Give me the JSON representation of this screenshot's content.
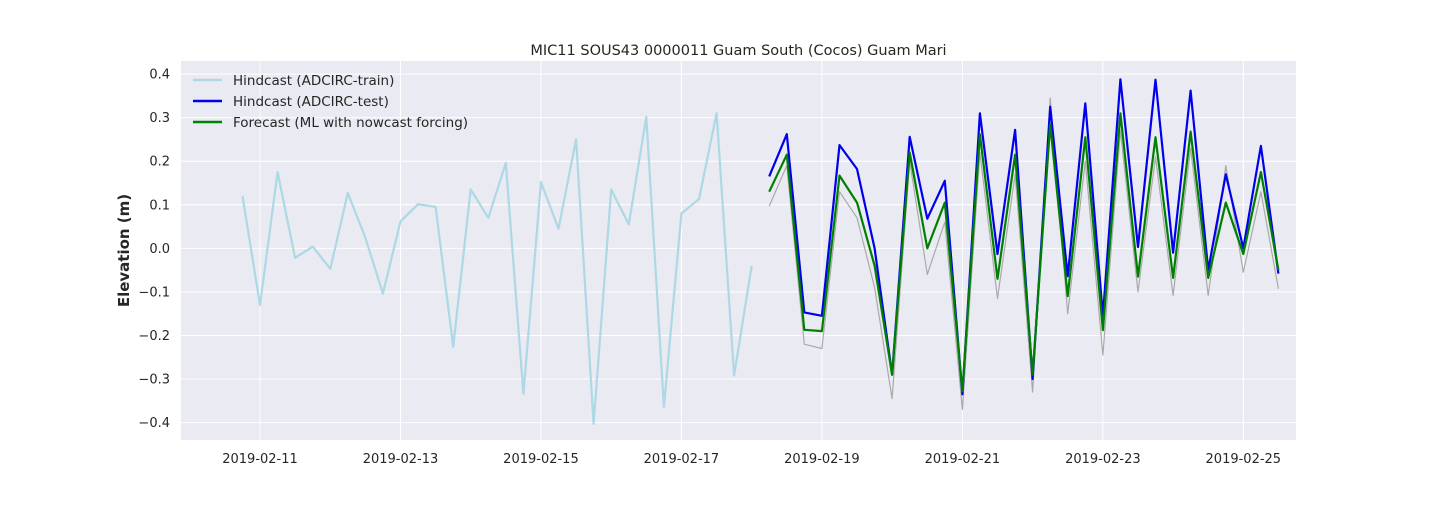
{
  "chart_data": {
    "type": "line",
    "title": "MIC11 SOUS43 0000011 Guam South (Cocos) Guam Mari",
    "xlabel": "",
    "ylabel": "Elevation (m)",
    "xlim": [
      "2019-02-09T21:00",
      "2019-02-25T18:00"
    ],
    "ylim": [
      -0.44,
      0.43
    ],
    "xticks": [
      "2019-02-11",
      "2019-02-13",
      "2019-02-15",
      "2019-02-17",
      "2019-02-19",
      "2019-02-21",
      "2019-02-23",
      "2019-02-25"
    ],
    "yticks": [
      "0.4",
      "0.3",
      "0.2",
      "0.1",
      "0.0",
      "−0.1",
      "−0.2",
      "−0.3",
      "−0.4"
    ],
    "grid": true,
    "legend_position": "top-left",
    "series": [
      {
        "name": "Hindcast (ADCIRC-train)",
        "color": "#add8e6",
        "points": [
          [
            "2019-02-10T18:00",
            0.12
          ],
          [
            "2019-02-11T00:00",
            -0.13
          ],
          [
            "2019-02-11T06:00",
            0.175
          ],
          [
            "2019-02-11T12:00",
            -0.022
          ],
          [
            "2019-02-11T18:00",
            0.004
          ],
          [
            "2019-02-12T00:00",
            -0.047
          ],
          [
            "2019-02-12T06:00",
            0.127
          ],
          [
            "2019-02-12T12:00",
            0.024
          ],
          [
            "2019-02-12T18:00",
            -0.104
          ],
          [
            "2019-02-13T00:00",
            0.062
          ],
          [
            "2019-02-13T06:00",
            0.101
          ],
          [
            "2019-02-13T12:00",
            0.095
          ],
          [
            "2019-02-13T18:00",
            -0.226
          ],
          [
            "2019-02-14T00:00",
            0.135
          ],
          [
            "2019-02-14T06:00",
            0.07
          ],
          [
            "2019-02-14T12:00",
            0.196
          ],
          [
            "2019-02-14T18:00",
            -0.334
          ],
          [
            "2019-02-15T00:00",
            0.152
          ],
          [
            "2019-02-15T06:00",
            0.045
          ],
          [
            "2019-02-15T12:00",
            0.25
          ],
          [
            "2019-02-15T18:00",
            -0.403
          ],
          [
            "2019-02-16T00:00",
            0.135
          ],
          [
            "2019-02-16T06:00",
            0.055
          ],
          [
            "2019-02-16T12:00",
            0.302
          ],
          [
            "2019-02-16T18:00",
            -0.364
          ],
          [
            "2019-02-17T00:00",
            0.08
          ],
          [
            "2019-02-17T06:00",
            0.113
          ],
          [
            "2019-02-17T12:00",
            0.31
          ],
          [
            "2019-02-17T18:00",
            -0.292
          ],
          [
            "2019-02-18T00:00",
            -0.04
          ]
        ]
      },
      {
        "name": "Hindcast (ADCIRC-test)",
        "color": "#0000ee",
        "points": [
          [
            "2019-02-18T06:00",
            0.165
          ],
          [
            "2019-02-18T12:00",
            0.262
          ],
          [
            "2019-02-18T18:00",
            -0.147
          ],
          [
            "2019-02-19T00:00",
            -0.155
          ],
          [
            "2019-02-19T06:00",
            0.237
          ],
          [
            "2019-02-19T12:00",
            0.182
          ],
          [
            "2019-02-19T18:00",
            0.0
          ],
          [
            "2019-02-20T00:00",
            -0.29
          ],
          [
            "2019-02-20T06:00",
            0.256
          ],
          [
            "2019-02-20T12:00",
            0.068
          ],
          [
            "2019-02-20T18:00",
            0.155
          ],
          [
            "2019-02-21T00:00",
            -0.335
          ],
          [
            "2019-02-21T06:00",
            0.31
          ],
          [
            "2019-02-21T12:00",
            -0.013
          ],
          [
            "2019-02-21T18:00",
            0.272
          ],
          [
            "2019-02-22T00:00",
            -0.3
          ],
          [
            "2019-02-22T06:00",
            0.325
          ],
          [
            "2019-02-22T12:00",
            -0.064
          ],
          [
            "2019-02-22T18:00",
            0.333
          ],
          [
            "2019-02-23T00:00",
            -0.155
          ],
          [
            "2019-02-23T06:00",
            0.388
          ],
          [
            "2019-02-23T12:00",
            0.003
          ],
          [
            "2019-02-23T18:00",
            0.387
          ],
          [
            "2019-02-24T00:00",
            -0.01
          ],
          [
            "2019-02-24T06:00",
            0.362
          ],
          [
            "2019-02-24T12:00",
            -0.05
          ],
          [
            "2019-02-24T18:00",
            0.17
          ],
          [
            "2019-02-25T00:00",
            0.0
          ],
          [
            "2019-02-25T06:00",
            0.235
          ],
          [
            "2019-02-25T12:00",
            -0.058
          ]
        ]
      },
      {
        "name": "Forecast (ML with nowcast forcing)",
        "color": "#008000",
        "points": [
          [
            "2019-02-18T06:00",
            0.13
          ],
          [
            "2019-02-18T12:00",
            0.215
          ],
          [
            "2019-02-18T18:00",
            -0.187
          ],
          [
            "2019-02-19T00:00",
            -0.19
          ],
          [
            "2019-02-19T06:00",
            0.167
          ],
          [
            "2019-02-19T12:00",
            0.105
          ],
          [
            "2019-02-19T18:00",
            -0.04
          ],
          [
            "2019-02-20T00:00",
            -0.29
          ],
          [
            "2019-02-20T06:00",
            0.22
          ],
          [
            "2019-02-20T12:00",
            0.0
          ],
          [
            "2019-02-20T18:00",
            0.105
          ],
          [
            "2019-02-21T00:00",
            -0.328
          ],
          [
            "2019-02-21T06:00",
            0.262
          ],
          [
            "2019-02-21T12:00",
            -0.07
          ],
          [
            "2019-02-21T18:00",
            0.215
          ],
          [
            "2019-02-22T00:00",
            -0.29
          ],
          [
            "2019-02-22T06:00",
            0.285
          ],
          [
            "2019-02-22T12:00",
            -0.11
          ],
          [
            "2019-02-22T18:00",
            0.255
          ],
          [
            "2019-02-23T00:00",
            -0.188
          ],
          [
            "2019-02-23T06:00",
            0.31
          ],
          [
            "2019-02-23T12:00",
            -0.065
          ],
          [
            "2019-02-23T18:00",
            0.255
          ],
          [
            "2019-02-24T00:00",
            -0.068
          ],
          [
            "2019-02-24T06:00",
            0.268
          ],
          [
            "2019-02-24T12:00",
            -0.068
          ],
          [
            "2019-02-24T18:00",
            0.105
          ],
          [
            "2019-02-25T00:00",
            -0.013
          ],
          [
            "2019-02-25T06:00",
            0.175
          ],
          [
            "2019-02-25T12:00",
            -0.05
          ]
        ]
      },
      {
        "color": "#aaaaaa",
        "points": [
          [
            "2019-02-18T06:00",
            0.097
          ],
          [
            "2019-02-18T12:00",
            0.19
          ],
          [
            "2019-02-18T18:00",
            -0.22
          ],
          [
            "2019-02-19T00:00",
            -0.23
          ],
          [
            "2019-02-19T06:00",
            0.13
          ],
          [
            "2019-02-19T12:00",
            0.07
          ],
          [
            "2019-02-19T18:00",
            -0.09
          ],
          [
            "2019-02-20T00:00",
            -0.345
          ],
          [
            "2019-02-20T06:00",
            0.2
          ],
          [
            "2019-02-20T12:00",
            -0.06
          ],
          [
            "2019-02-20T18:00",
            0.06
          ],
          [
            "2019-02-21T00:00",
            -0.37
          ],
          [
            "2019-02-21T06:00",
            0.22
          ],
          [
            "2019-02-21T12:00",
            -0.115
          ],
          [
            "2019-02-21T18:00",
            0.17
          ],
          [
            "2019-02-22T00:00",
            -0.33
          ],
          [
            "2019-02-22T06:00",
            0.345
          ],
          [
            "2019-02-22T12:00",
            -0.15
          ],
          [
            "2019-02-22T18:00",
            0.2
          ],
          [
            "2019-02-23T00:00",
            -0.245
          ],
          [
            "2019-02-23T06:00",
            0.27
          ],
          [
            "2019-02-23T12:00",
            -0.1
          ],
          [
            "2019-02-23T18:00",
            0.21
          ],
          [
            "2019-02-24T00:00",
            -0.108
          ],
          [
            "2019-02-24T06:00",
            0.23
          ],
          [
            "2019-02-24T12:00",
            -0.108
          ],
          [
            "2019-02-24T18:00",
            0.19
          ],
          [
            "2019-02-25T00:00",
            -0.055
          ],
          [
            "2019-02-25T06:00",
            0.13
          ],
          [
            "2019-02-25T12:00",
            -0.093
          ]
        ]
      }
    ]
  }
}
